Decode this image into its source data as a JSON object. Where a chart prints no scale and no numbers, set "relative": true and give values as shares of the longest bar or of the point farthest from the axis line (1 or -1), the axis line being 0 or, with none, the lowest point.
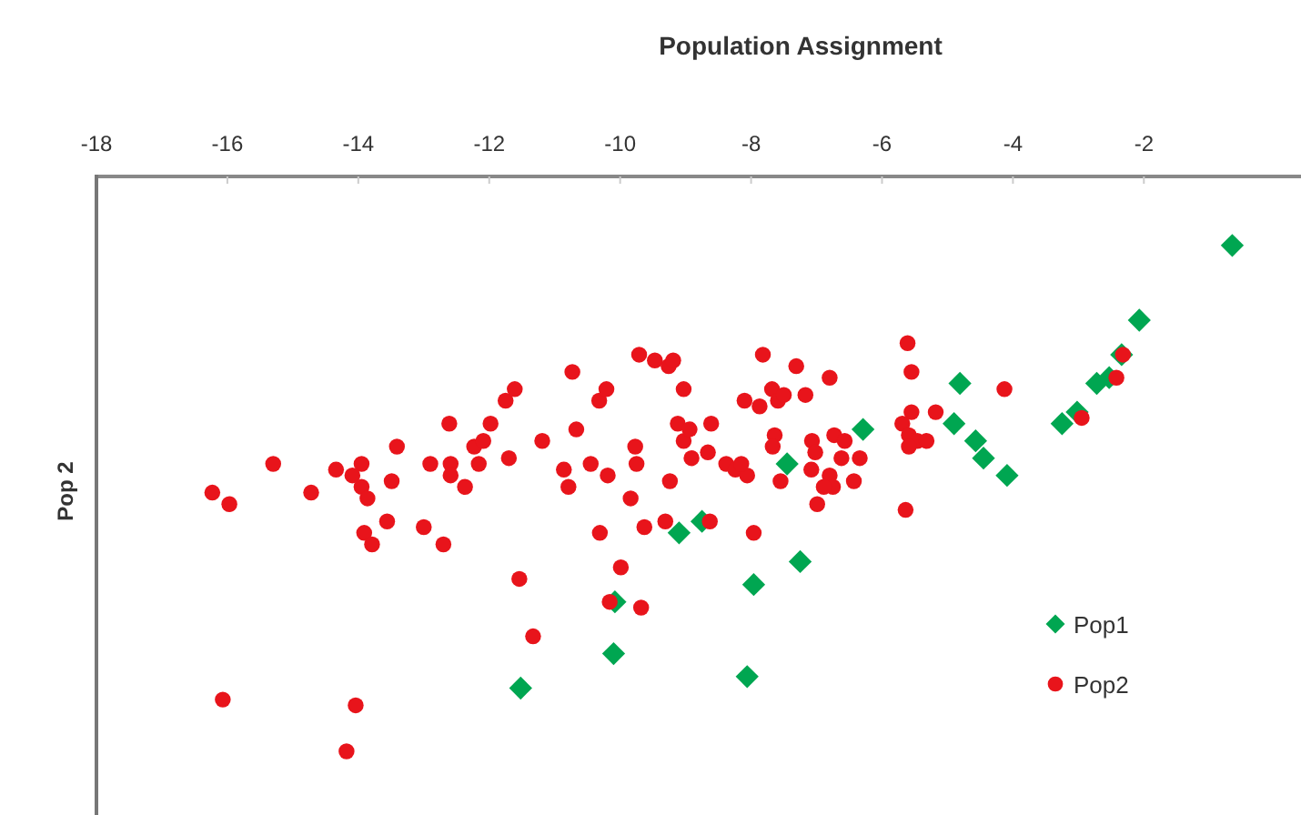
{
  "chart_data": {
    "type": "scatter",
    "xlabel": "Population Assignment",
    "ylabel": "Pop 2",
    "relative": true,
    "tick_labels": "x",
    "legend": "bottom right",
    "grid": false,
    "xlim": [
      -18,
      0.4
    ],
    "xticks": [
      -18,
      -16,
      -14,
      -12,
      -10,
      -8,
      -6,
      -4,
      -2
    ],
    "series": [
      {
        "name": "Pop1",
        "color": "#00a651",
        "marker": "diamond",
        "x": [
          -9.1,
          -10.08,
          -10.1,
          -11.52,
          -6.29,
          -7.45,
          -8.75,
          -7.25,
          -7.96,
          -8.06,
          -4.81,
          -4.9,
          -4.57,
          -4.45,
          -4.09,
          -3.25,
          -3.02,
          -2.72,
          -2.53,
          -2.34,
          -2.07,
          -0.65
        ],
        "values": [
          -0.62,
          -0.74,
          -0.83,
          -0.89,
          -0.44,
          -0.5,
          -0.6,
          -0.67,
          -0.71,
          -0.87,
          -0.36,
          -0.43,
          -0.46,
          -0.49,
          -0.52,
          -0.43,
          -0.41,
          -0.36,
          -0.35,
          -0.31,
          -0.25,
          -0.12
        ]
      },
      {
        "name": "Pop2",
        "color": "#e8141b",
        "marker": "circle",
        "x": [
          -16.23,
          -15.97,
          -15.3,
          -14.72,
          -14.34,
          -13.95,
          -14.09,
          -13.95,
          -13.86,
          -13.49,
          -13.41,
          -13.56,
          -13.91,
          -13.79,
          -13.0,
          -12.7,
          -12.9,
          -12.61,
          -12.59,
          -12.59,
          -12.37,
          -12.23,
          -12.09,
          -12.16,
          -11.98,
          -11.75,
          -11.61,
          -11.7,
          -11.19,
          -11.54,
          -11.33,
          -10.73,
          -10.67,
          -10.86,
          -10.79,
          -10.45,
          -10.32,
          -10.21,
          -10.19,
          -10.31,
          -9.99,
          -10.16,
          -9.68,
          -9.84,
          -9.77,
          -9.75,
          -9.63,
          -9.31,
          -9.24,
          -9.71,
          -9.47,
          -9.26,
          -9.19,
          -9.03,
          -9.12,
          -9.03,
          -8.94,
          -8.91,
          -16.07,
          -14.04,
          -14.18,
          -8.63,
          -8.61,
          -8.66,
          -7.82,
          -7.31,
          -6.8,
          -8.1,
          -7.87,
          -7.68,
          -7.59,
          -7.5,
          -7.17,
          -7.96,
          -7.64,
          -7.67,
          -7.55,
          -8.38,
          -8.24,
          -8.06,
          -8.15,
          -7.07,
          -7.02,
          -6.73,
          -6.57,
          -6.62,
          -6.34,
          -7.08,
          -6.8,
          -6.75,
          -6.89,
          -6.43,
          -6.99,
          -5.61,
          -5.55,
          -5.55,
          -5.69,
          -5.59,
          -5.46,
          -5.32,
          -5.59,
          -5.18,
          -5.64,
          -4.13,
          -2.95,
          -2.42,
          -2.32
        ],
        "values": [
          -0.55,
          -0.57,
          -0.5,
          -0.55,
          -0.51,
          -0.5,
          -0.52,
          -0.54,
          -0.56,
          -0.53,
          -0.47,
          -0.6,
          -0.62,
          -0.64,
          -0.61,
          -0.64,
          -0.5,
          -0.43,
          -0.5,
          -0.52,
          -0.54,
          -0.47,
          -0.46,
          -0.5,
          -0.43,
          -0.39,
          -0.37,
          -0.49,
          -0.46,
          -0.7,
          -0.8,
          -0.34,
          -0.44,
          -0.51,
          -0.54,
          -0.5,
          -0.39,
          -0.37,
          -0.52,
          -0.62,
          -0.68,
          -0.74,
          -0.75,
          -0.56,
          -0.47,
          -0.5,
          -0.61,
          -0.6,
          -0.53,
          -0.31,
          -0.32,
          -0.33,
          -0.32,
          -0.37,
          -0.43,
          -0.46,
          -0.44,
          -0.49,
          -0.91,
          -0.92,
          -1.0,
          -0.6,
          -0.43,
          -0.48,
          -0.31,
          -0.33,
          -0.35,
          -0.39,
          -0.4,
          -0.37,
          -0.39,
          -0.38,
          -0.38,
          -0.62,
          -0.45,
          -0.47,
          -0.53,
          -0.5,
          -0.51,
          -0.52,
          -0.5,
          -0.46,
          -0.48,
          -0.45,
          -0.46,
          -0.49,
          -0.49,
          -0.51,
          -0.52,
          -0.54,
          -0.54,
          -0.53,
          -0.57,
          -0.29,
          -0.34,
          -0.41,
          -0.43,
          -0.45,
          -0.46,
          -0.46,
          -0.47,
          -0.41,
          -0.58,
          -0.37,
          -0.42,
          -0.35,
          -0.31
        ]
      }
    ]
  }
}
